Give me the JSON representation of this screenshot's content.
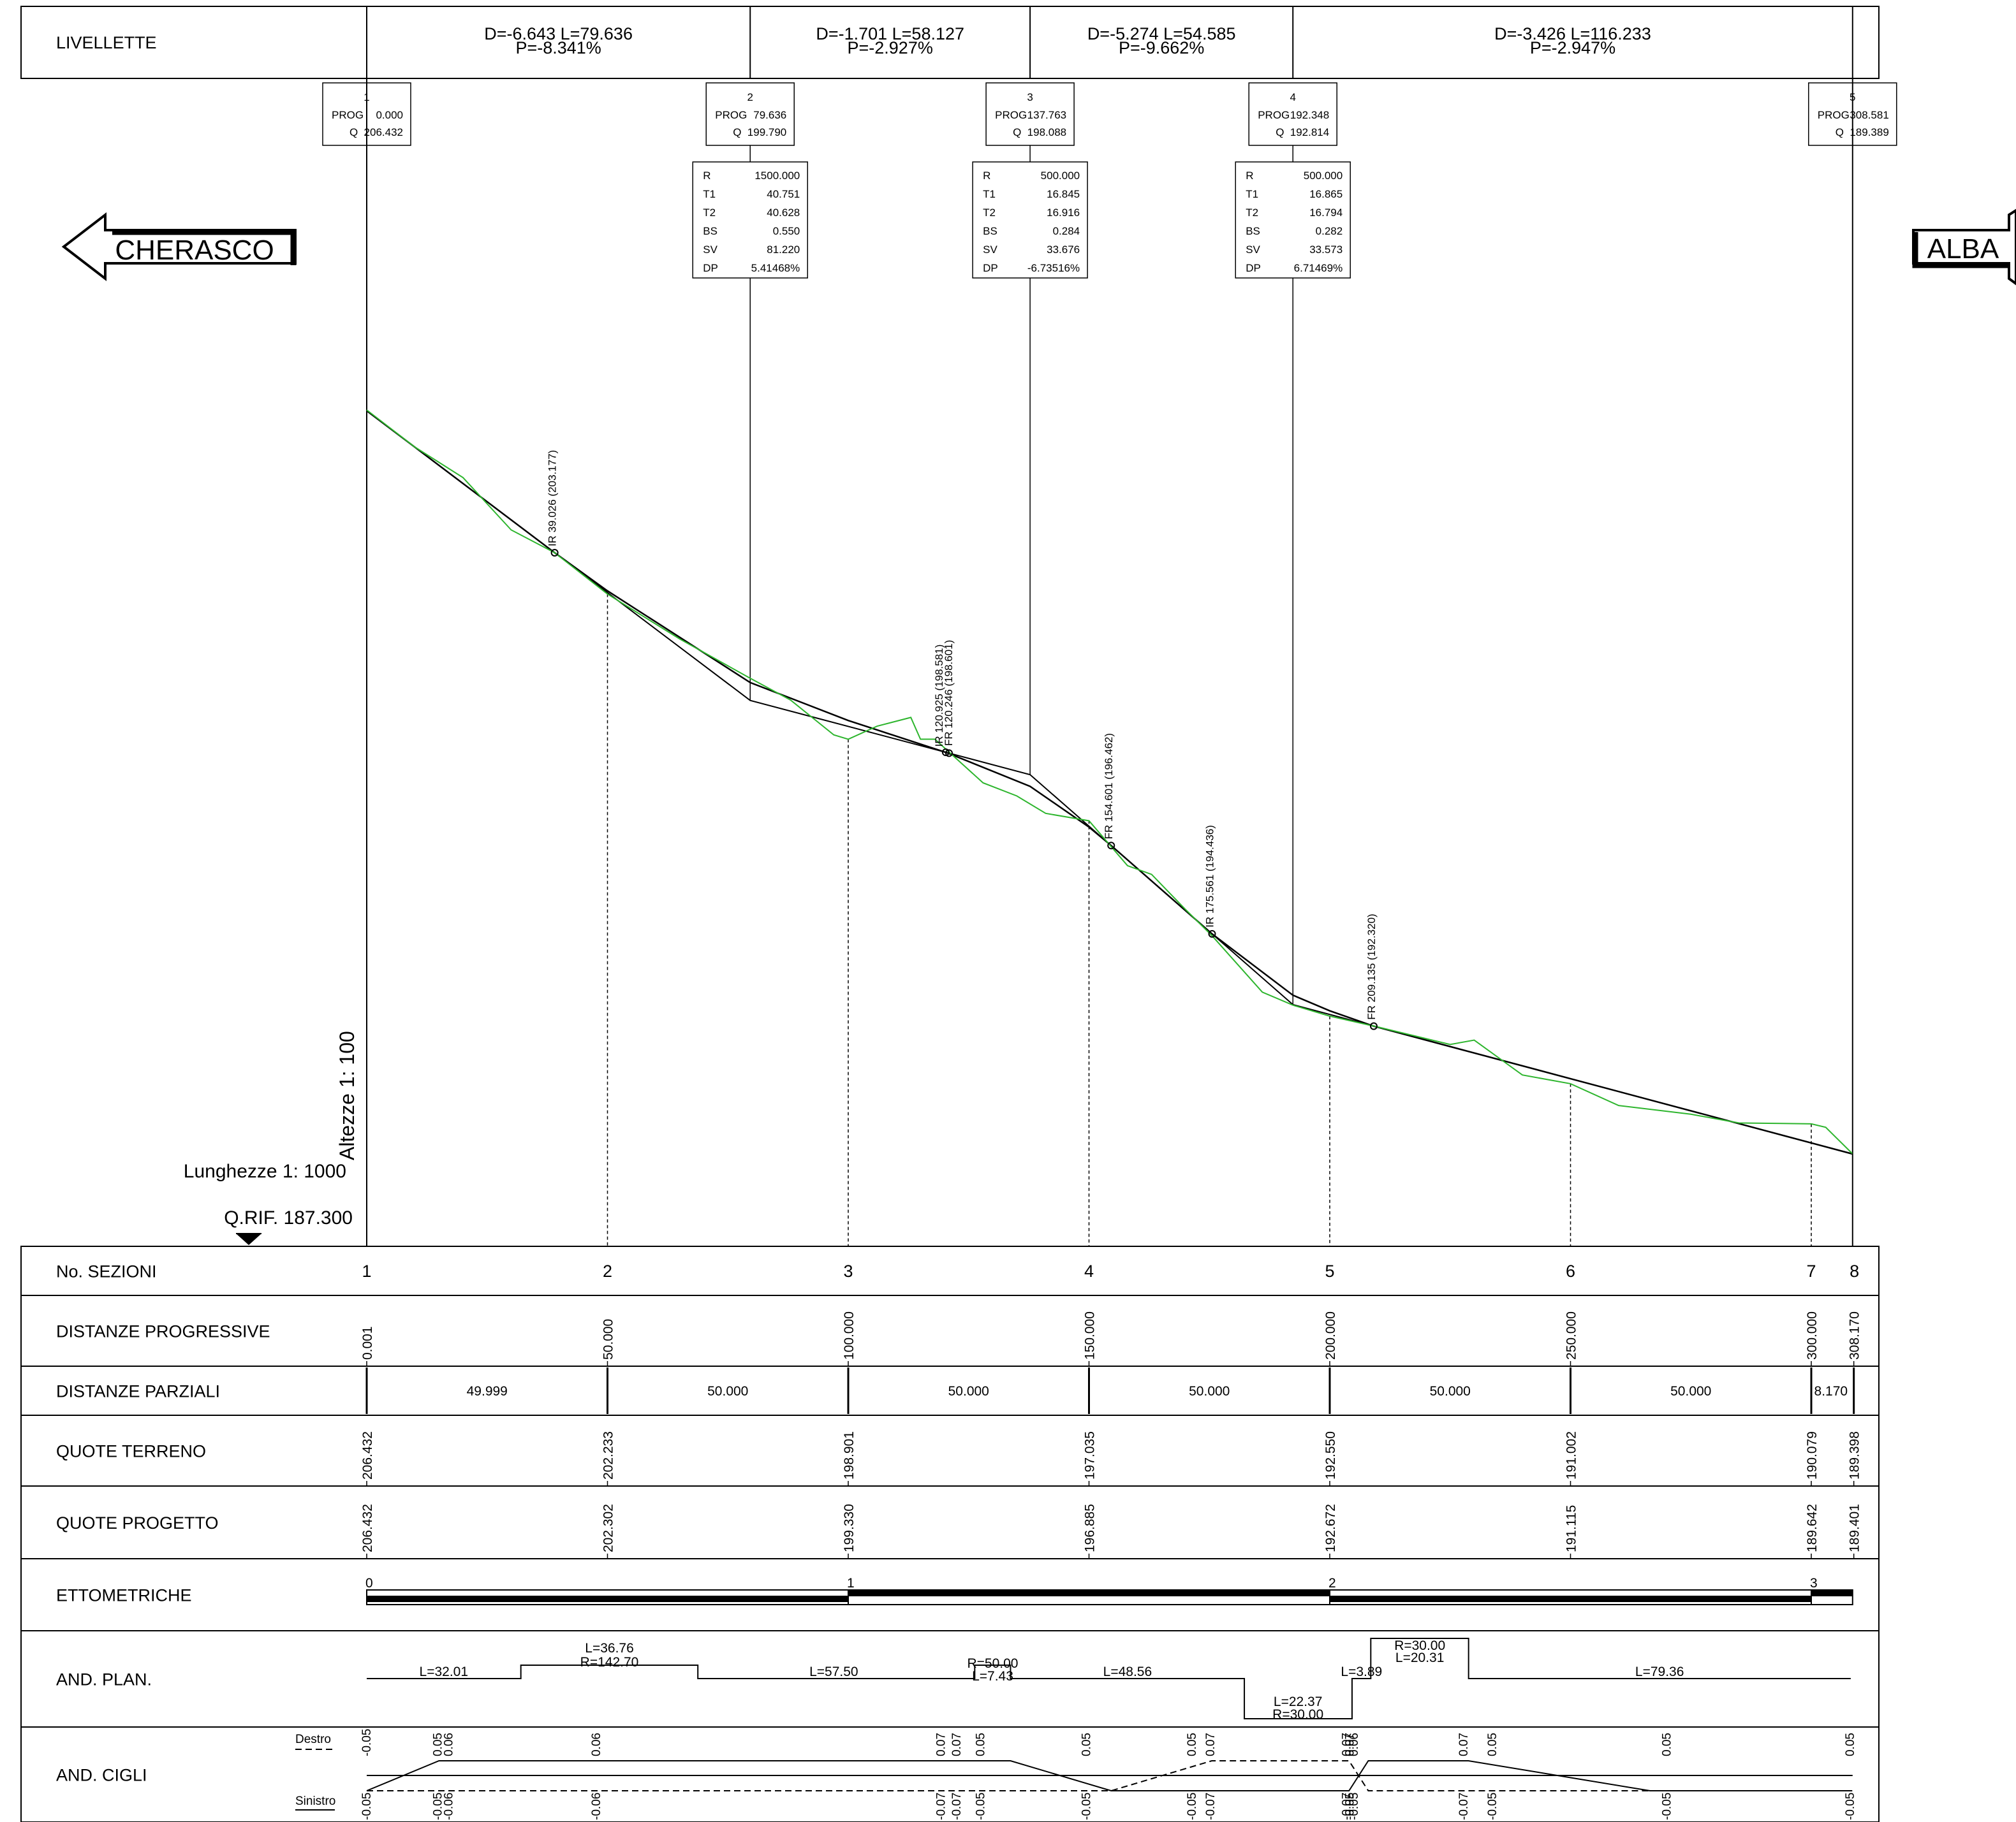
{
  "livellette": {
    "label": "LIVELLETTE",
    "segments": [
      {
        "line1": "D=-6.643 L=79.636",
        "line2": "P=-8.341%"
      },
      {
        "line1": "D=-1.701 L=58.127",
        "line2": "P=-2.927%"
      },
      {
        "line1": "D=-5.274 L=54.585",
        "line2": "P=-9.662%"
      },
      {
        "line1": "D=-3.426 L=116.233",
        "line2": "P=-2.947%"
      }
    ]
  },
  "vertices": [
    {
      "n": "1",
      "prog_label": "PROG",
      "prog": "0.000",
      "q_label": "Q",
      "q": "206.432"
    },
    {
      "n": "2",
      "prog_label": "PROG",
      "prog": "79.636",
      "q_label": "Q",
      "q": "199.790"
    },
    {
      "n": "3",
      "prog_label": "PROG",
      "prog": "137.763",
      "q_label": "Q",
      "q": "198.088"
    },
    {
      "n": "4",
      "prog_label": "PROG",
      "prog": "192.348",
      "q_label": "Q",
      "q": "192.814"
    },
    {
      "n": "5",
      "prog_label": "PROG",
      "prog": "308.581",
      "q_label": "Q",
      "q": "189.389"
    }
  ],
  "curves": [
    {
      "rows": [
        [
          "R",
          "1500.000"
        ],
        [
          "T1",
          "40.751"
        ],
        [
          "T2",
          "40.628"
        ],
        [
          "BS",
          "0.550"
        ],
        [
          "SV",
          "81.220"
        ],
        [
          "DP",
          "5.41468%"
        ]
      ]
    },
    {
      "rows": [
        [
          "R",
          "500.000"
        ],
        [
          "T1",
          "16.845"
        ],
        [
          "T2",
          "16.916"
        ],
        [
          "BS",
          "0.284"
        ],
        [
          "SV",
          "33.676"
        ],
        [
          "DP",
          "-6.73516%"
        ]
      ]
    },
    {
      "rows": [
        [
          "R",
          "500.000"
        ],
        [
          "T1",
          "16.865"
        ],
        [
          "T2",
          "16.794"
        ],
        [
          "BS",
          "0.282"
        ],
        [
          "SV",
          "33.573"
        ],
        [
          "DP",
          "6.71469%"
        ]
      ]
    }
  ],
  "directions": {
    "left": "CHERASCO",
    "right": "ALBA"
  },
  "scales": {
    "heights": "Altezze 1: 100",
    "lengths": "Lunghezze 1: 1000",
    "qrif": "Q.RIF. 187.300"
  },
  "markers": [
    {
      "text": "IR  39.026 (203.177)"
    },
    {
      "text": "IR  120.925 (198.581)"
    },
    {
      "text": "FR  120.246 (198.601)"
    },
    {
      "text": "FR  154.601 (196.462)"
    },
    {
      "text": "IR  175.561 (194.436)"
    },
    {
      "text": "FR  209.135 (192.320)"
    }
  ],
  "table": {
    "row_labels": {
      "sezioni": "No. SEZIONI",
      "progressive": "DISTANZE PROGRESSIVE",
      "parziali": "DISTANZE PARZIALI",
      "terreno": "QUOTE TERRENO",
      "progetto": "QUOTE PROGETTO",
      "ettometriche": "ETTOMETRICHE",
      "plan": "AND. PLAN.",
      "cigli": "AND. CIGLI"
    },
    "sections": [
      "1",
      "2",
      "3",
      "4",
      "5",
      "6",
      "7",
      "8"
    ],
    "progressive": [
      "0.001",
      "50.000",
      "100.000",
      "150.000",
      "200.000",
      "250.000",
      "300.000",
      "308.170"
    ],
    "parziali": [
      "49.999",
      "50.000",
      "50.000",
      "50.000",
      "50.000",
      "50.000",
      "8.170"
    ],
    "terreno": [
      "206.432",
      "202.233",
      "198.901",
      "197.035",
      "192.550",
      "191.002",
      "190.079",
      "189.398"
    ],
    "progetto": [
      "206.432",
      "202.302",
      "199.330",
      "196.885",
      "192.672",
      "191.115",
      "189.642",
      "189.401"
    ],
    "hecto": [
      "0",
      "1",
      "2",
      "3"
    ],
    "plan": [
      {
        "l1": "L=32.01",
        "l2": ""
      },
      {
        "l1": "L=36.76",
        "l2": "R=142.70"
      },
      {
        "l1": "L=57.50",
        "l2": ""
      },
      {
        "l1": "R=50.00",
        "l2": "L=7.43"
      },
      {
        "l1": "L=48.56",
        "l2": ""
      },
      {
        "l1": "L=22.37",
        "l2": "R=30.00"
      },
      {
        "l1": "L=3.89",
        "l2": ""
      },
      {
        "l1": "R=30.00",
        "l2": "L=20.31"
      },
      {
        "l1": "L=79.36",
        "l2": ""
      }
    ],
    "cigli": {
      "legend_right": "Destro",
      "legend_left": "Sinistro",
      "top": [
        "-0.05",
        "0.05",
        "0.06",
        "0.06",
        "0.07",
        "0.07",
        "0.05",
        "0.05",
        "0.05",
        "0.07",
        "0.07",
        "0.07",
        "0.06",
        "0.07",
        "0.05",
        "0.05",
        "0.05"
      ],
      "bottom": [
        "-0.05",
        "-0.05",
        "-0.06",
        "-0.06",
        "-0.07",
        "-0.07",
        "-0.05",
        "-0.05",
        "-0.05",
        "-0.07",
        "-0.07",
        "-0.05",
        "-0.05",
        "-0.07",
        "-0.05",
        "-0.05",
        "-0.05"
      ]
    }
  },
  "colors": {
    "terrain": "#2db52d",
    "project": "#000000"
  }
}
